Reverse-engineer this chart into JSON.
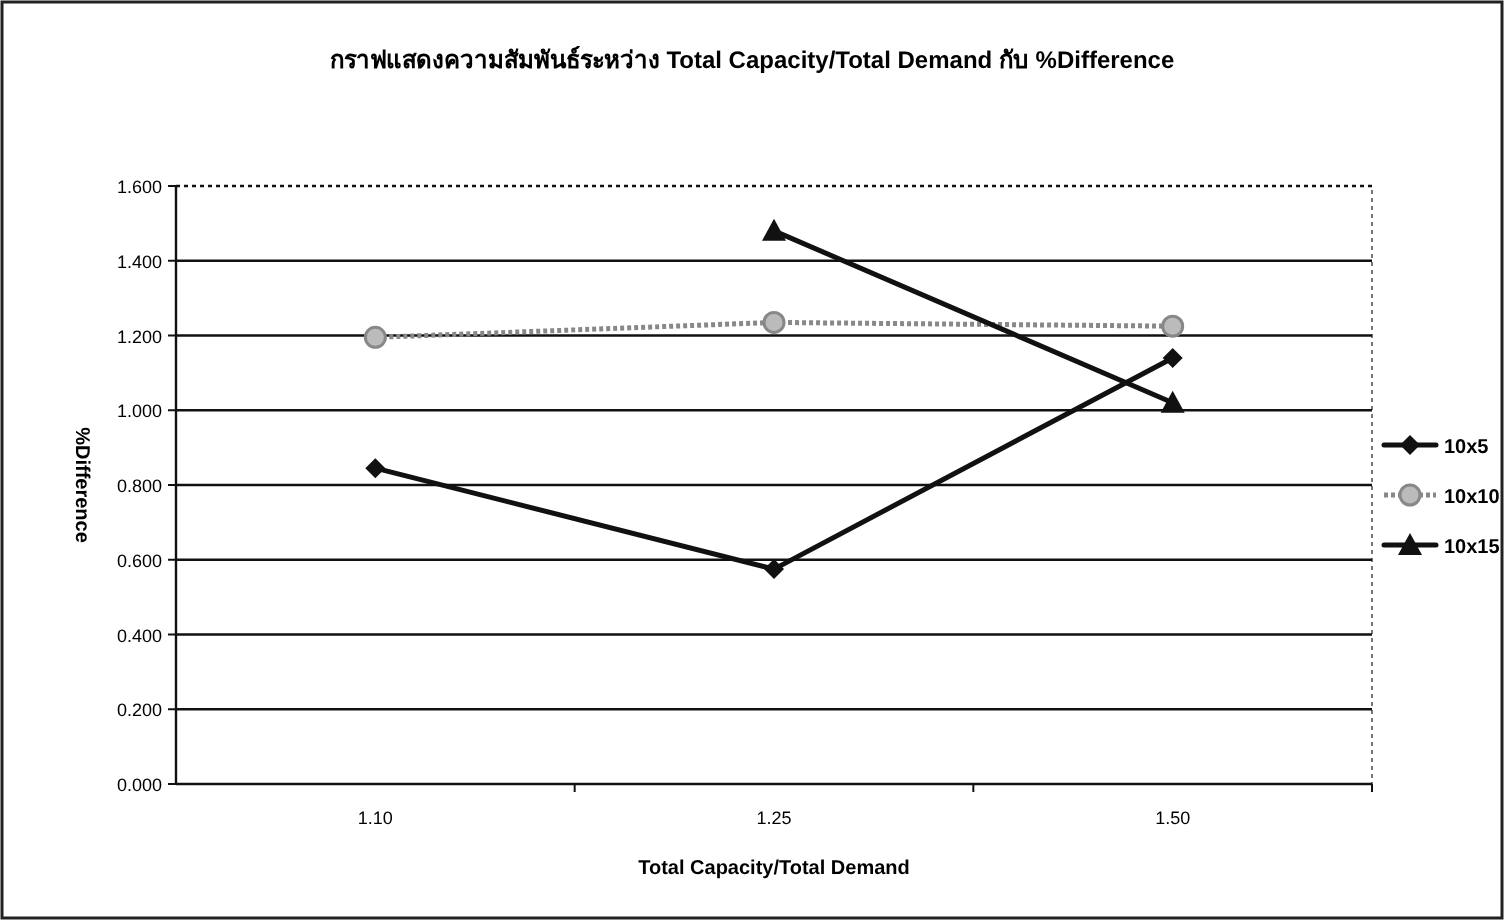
{
  "chart_data": {
    "type": "line",
    "title": "กราฟแสดงความสัมพันธ์ระหว่าง Total Capacity/Total Demand กับ %Difference",
    "xlabel": "Total Capacity/Total Demand",
    "ylabel": "%Difference",
    "categories": [
      "1.10",
      "1.25",
      "1.50"
    ],
    "series": [
      {
        "name": "10x5",
        "color": "#111111",
        "marker": "diamond",
        "line_style": "solid",
        "values": [
          0.845,
          0.575,
          1.14
        ]
      },
      {
        "name": "10x10",
        "color": "#888888",
        "marker": "circle",
        "line_style": "dotted",
        "values": [
          1.195,
          1.235,
          1.225
        ]
      },
      {
        "name": "10x15",
        "color": "#111111",
        "marker": "triangle",
        "line_style": "solid",
        "values": [
          null,
          1.48,
          1.02
        ]
      }
    ],
    "ylim": [
      0,
      1.6
    ],
    "yticks": [
      {
        "value": 0,
        "label": "0.000"
      },
      {
        "value": 0.2,
        "label": "0.200"
      },
      {
        "value": 0.4,
        "label": "0.400"
      },
      {
        "value": 0.6,
        "label": "0.600"
      },
      {
        "value": 0.8,
        "label": "0.800"
      },
      {
        "value": 1.0,
        "label": "1.000"
      },
      {
        "value": 1.2,
        "label": "1.200"
      },
      {
        "value": 1.4,
        "label": "1.400"
      },
      {
        "value": 1.6,
        "label": "1.600"
      }
    ],
    "grid": "y",
    "legend": "right"
  }
}
